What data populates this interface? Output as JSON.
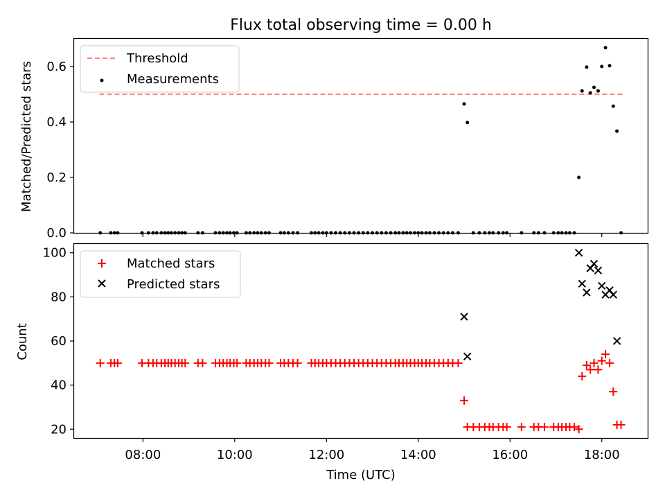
{
  "figure": {
    "title": "Flux total observing time = 0.00 h"
  },
  "chart_data": [
    {
      "type": "scatter",
      "ylabel": "Matched/Predicted stars",
      "xlim_hours": [
        6.5,
        19.0
      ],
      "ylim": [
        0,
        0.7
      ],
      "yticks": [
        "0.0",
        "0.2",
        "0.4",
        "0.6"
      ],
      "threshold": {
        "label": "Threshold",
        "value": 0.5,
        "x_range_hours": [
          7.05,
          18.45
        ],
        "color": "#ff7f7f"
      },
      "series": [
        {
          "name": "Measurements",
          "color": "#000000",
          "points": [
            [
              7.07,
              0
            ],
            [
              7.3,
              0
            ],
            [
              7.38,
              0
            ],
            [
              7.45,
              0
            ],
            [
              7.98,
              0
            ],
            [
              8.12,
              0
            ],
            [
              8.22,
              0
            ],
            [
              8.3,
              0
            ],
            [
              8.4,
              0
            ],
            [
              8.48,
              0
            ],
            [
              8.55,
              0
            ],
            [
              8.62,
              0
            ],
            [
              8.7,
              0
            ],
            [
              8.78,
              0
            ],
            [
              8.85,
              0
            ],
            [
              8.92,
              0
            ],
            [
              9.2,
              0
            ],
            [
              9.3,
              0
            ],
            [
              9.58,
              0
            ],
            [
              9.67,
              0
            ],
            [
              9.75,
              0
            ],
            [
              9.83,
              0
            ],
            [
              9.9,
              0
            ],
            [
              9.98,
              0
            ],
            [
              10.05,
              0
            ],
            [
              10.25,
              0
            ],
            [
              10.33,
              0
            ],
            [
              10.42,
              0
            ],
            [
              10.5,
              0
            ],
            [
              10.58,
              0
            ],
            [
              10.67,
              0
            ],
            [
              10.75,
              0
            ],
            [
              11.0,
              0
            ],
            [
              11.08,
              0
            ],
            [
              11.17,
              0
            ],
            [
              11.27,
              0
            ],
            [
              11.37,
              0
            ],
            [
              11.67,
              0
            ],
            [
              11.75,
              0
            ],
            [
              11.83,
              0
            ],
            [
              11.92,
              0
            ],
            [
              12.0,
              0
            ],
            [
              12.1,
              0
            ],
            [
              12.2,
              0
            ],
            [
              12.3,
              0
            ],
            [
              12.4,
              0
            ],
            [
              12.5,
              0
            ],
            [
              12.6,
              0
            ],
            [
              12.7,
              0
            ],
            [
              12.8,
              0
            ],
            [
              12.9,
              0
            ],
            [
              13.0,
              0
            ],
            [
              13.1,
              0
            ],
            [
              13.2,
              0
            ],
            [
              13.3,
              0
            ],
            [
              13.4,
              0
            ],
            [
              13.5,
              0
            ],
            [
              13.58,
              0
            ],
            [
              13.67,
              0
            ],
            [
              13.75,
              0
            ],
            [
              13.83,
              0
            ],
            [
              13.92,
              0
            ],
            [
              14.0,
              0
            ],
            [
              14.08,
              0
            ],
            [
              14.17,
              0
            ],
            [
              14.25,
              0
            ],
            [
              14.35,
              0
            ],
            [
              14.45,
              0
            ],
            [
              14.55,
              0
            ],
            [
              14.65,
              0
            ],
            [
              14.75,
              0
            ],
            [
              14.87,
              0
            ],
            [
              15.0,
              0.465
            ],
            [
              15.07,
              0.398
            ],
            [
              15.2,
              0
            ],
            [
              15.33,
              0
            ],
            [
              15.45,
              0
            ],
            [
              15.55,
              0
            ],
            [
              15.63,
              0
            ],
            [
              15.75,
              0
            ],
            [
              15.85,
              0
            ],
            [
              15.93,
              0
            ],
            [
              16.25,
              0
            ],
            [
              16.52,
              0
            ],
            [
              16.62,
              0
            ],
            [
              16.75,
              0
            ],
            [
              16.95,
              0
            ],
            [
              17.05,
              0
            ],
            [
              17.13,
              0
            ],
            [
              17.22,
              0
            ],
            [
              17.3,
              0
            ],
            [
              17.4,
              0
            ],
            [
              17.5,
              0.2
            ],
            [
              17.57,
              0.512
            ],
            [
              17.67,
              0.598
            ],
            [
              17.75,
              0.505
            ],
            [
              17.83,
              0.525
            ],
            [
              17.92,
              0.512
            ],
            [
              18.0,
              0.6
            ],
            [
              18.08,
              0.668
            ],
            [
              18.17,
              0.603
            ],
            [
              18.25,
              0.457
            ],
            [
              18.33,
              0.367
            ],
            [
              18.42,
              0
            ]
          ]
        }
      ]
    },
    {
      "type": "scatter",
      "xlabel": "Time (UTC)",
      "ylabel": "Count",
      "xlim_hours": [
        6.5,
        19.0
      ],
      "ylim": [
        16,
        104
      ],
      "yticks": [
        "20",
        "40",
        "60",
        "80",
        "100"
      ],
      "xticks": [
        "08:00",
        "10:00",
        "12:00",
        "14:00",
        "16:00",
        "18:00"
      ],
      "series": [
        {
          "name": "Matched stars",
          "marker": "+",
          "color": "#ff0000",
          "points": [
            [
              7.07,
              50
            ],
            [
              7.3,
              50
            ],
            [
              7.38,
              50
            ],
            [
              7.45,
              50
            ],
            [
              7.98,
              50
            ],
            [
              8.12,
              50
            ],
            [
              8.22,
              50
            ],
            [
              8.3,
              50
            ],
            [
              8.4,
              50
            ],
            [
              8.48,
              50
            ],
            [
              8.55,
              50
            ],
            [
              8.62,
              50
            ],
            [
              8.7,
              50
            ],
            [
              8.78,
              50
            ],
            [
              8.85,
              50
            ],
            [
              8.92,
              50
            ],
            [
              9.2,
              50
            ],
            [
              9.3,
              50
            ],
            [
              9.58,
              50
            ],
            [
              9.67,
              50
            ],
            [
              9.75,
              50
            ],
            [
              9.83,
              50
            ],
            [
              9.9,
              50
            ],
            [
              9.98,
              50
            ],
            [
              10.05,
              50
            ],
            [
              10.25,
              50
            ],
            [
              10.33,
              50
            ],
            [
              10.42,
              50
            ],
            [
              10.5,
              50
            ],
            [
              10.58,
              50
            ],
            [
              10.67,
              50
            ],
            [
              10.75,
              50
            ],
            [
              11.0,
              50
            ],
            [
              11.08,
              50
            ],
            [
              11.17,
              50
            ],
            [
              11.27,
              50
            ],
            [
              11.37,
              50
            ],
            [
              11.67,
              50
            ],
            [
              11.75,
              50
            ],
            [
              11.83,
              50
            ],
            [
              11.92,
              50
            ],
            [
              12.0,
              50
            ],
            [
              12.1,
              50
            ],
            [
              12.2,
              50
            ],
            [
              12.3,
              50
            ],
            [
              12.4,
              50
            ],
            [
              12.5,
              50
            ],
            [
              12.6,
              50
            ],
            [
              12.7,
              50
            ],
            [
              12.8,
              50
            ],
            [
              12.9,
              50
            ],
            [
              13.0,
              50
            ],
            [
              13.1,
              50
            ],
            [
              13.2,
              50
            ],
            [
              13.3,
              50
            ],
            [
              13.4,
              50
            ],
            [
              13.5,
              50
            ],
            [
              13.58,
              50
            ],
            [
              13.67,
              50
            ],
            [
              13.75,
              50
            ],
            [
              13.83,
              50
            ],
            [
              13.92,
              50
            ],
            [
              14.0,
              50
            ],
            [
              14.08,
              50
            ],
            [
              14.17,
              50
            ],
            [
              14.25,
              50
            ],
            [
              14.35,
              50
            ],
            [
              14.45,
              50
            ],
            [
              14.55,
              50
            ],
            [
              14.65,
              50
            ],
            [
              14.75,
              50
            ],
            [
              14.87,
              50
            ],
            [
              15.0,
              33
            ],
            [
              15.07,
              21
            ],
            [
              15.2,
              21
            ],
            [
              15.33,
              21
            ],
            [
              15.45,
              21
            ],
            [
              15.55,
              21
            ],
            [
              15.63,
              21
            ],
            [
              15.75,
              21
            ],
            [
              15.85,
              21
            ],
            [
              15.93,
              21
            ],
            [
              16.25,
              21
            ],
            [
              16.52,
              21
            ],
            [
              16.62,
              21
            ],
            [
              16.75,
              21
            ],
            [
              16.95,
              21
            ],
            [
              17.05,
              21
            ],
            [
              17.13,
              21
            ],
            [
              17.22,
              21
            ],
            [
              17.3,
              21
            ],
            [
              17.4,
              21
            ],
            [
              17.5,
              20
            ],
            [
              17.57,
              44
            ],
            [
              17.67,
              49
            ],
            [
              17.75,
              47
            ],
            [
              17.83,
              50
            ],
            [
              17.92,
              47
            ],
            [
              18.0,
              51
            ],
            [
              18.08,
              54
            ],
            [
              18.17,
              50
            ],
            [
              18.25,
              37
            ],
            [
              18.33,
              22
            ],
            [
              18.42,
              22
            ]
          ]
        },
        {
          "name": "Predicted stars",
          "marker": "x",
          "color": "#000000",
          "points": [
            [
              15.0,
              71
            ],
            [
              15.07,
              53
            ],
            [
              17.5,
              100
            ],
            [
              17.57,
              86
            ],
            [
              17.67,
              82
            ],
            [
              17.75,
              93
            ],
            [
              17.83,
              95
            ],
            [
              17.92,
              92
            ],
            [
              18.0,
              85
            ],
            [
              18.08,
              81
            ],
            [
              18.17,
              83
            ],
            [
              18.25,
              81
            ],
            [
              18.33,
              60
            ]
          ]
        }
      ]
    }
  ]
}
